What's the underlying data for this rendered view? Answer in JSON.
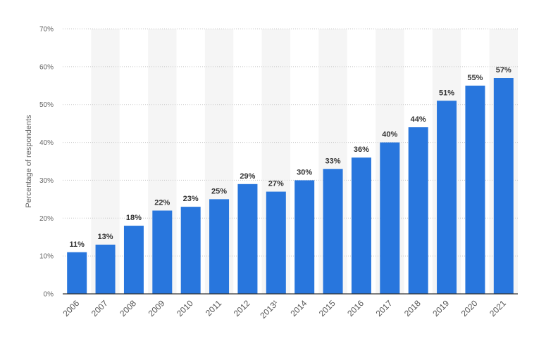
{
  "chart_data": {
    "type": "bar",
    "categories": [
      "2006",
      "2007",
      "2008",
      "2009",
      "2010",
      "2011",
      "2012",
      "2013¹",
      "2014",
      "2015",
      "2016",
      "2017",
      "2018",
      "2019",
      "2020",
      "2021"
    ],
    "values": [
      11,
      13,
      18,
      22,
      23,
      25,
      29,
      27,
      30,
      33,
      36,
      40,
      44,
      51,
      55,
      57
    ],
    "data_labels": [
      "11%",
      "13%",
      "18%",
      "22%",
      "23%",
      "25%",
      "29%",
      "27%",
      "30%",
      "33%",
      "36%",
      "40%",
      "44%",
      "51%",
      "55%",
      "57%"
    ],
    "title": "",
    "xlabel": "",
    "ylabel": "Percentage of respondents",
    "ylim": [
      0,
      70
    ],
    "yticks": [
      0,
      10,
      20,
      30,
      40,
      50,
      60,
      70
    ],
    "ytick_labels": [
      "0%",
      "10%",
      "20%",
      "30%",
      "40%",
      "50%",
      "60%",
      "70%"
    ],
    "grid": true,
    "alternating_column_shading": true,
    "colors": {
      "bar": "#2876dd",
      "grid": "#c8c8c8",
      "stripe": "#f5f5f5",
      "baseline": "#333333"
    }
  }
}
